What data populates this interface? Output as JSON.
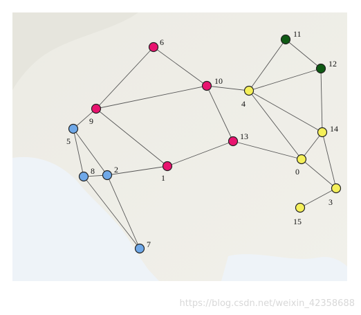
{
  "nodes": [
    {
      "label": "0"
    },
    {
      "label": "1"
    },
    {
      "label": "2"
    },
    {
      "label": "3"
    },
    {
      "label": "4"
    },
    {
      "label": "5"
    },
    {
      "label": "6"
    },
    {
      "label": "7"
    },
    {
      "label": "8"
    },
    {
      "label": "9"
    },
    {
      "label": "10"
    },
    {
      "label": "11"
    },
    {
      "label": "12"
    },
    {
      "label": "13"
    },
    {
      "label": "14"
    },
    {
      "label": "15"
    }
  ],
  "watermark": "https://blog.csdn.net/weixin_42358688"
}
